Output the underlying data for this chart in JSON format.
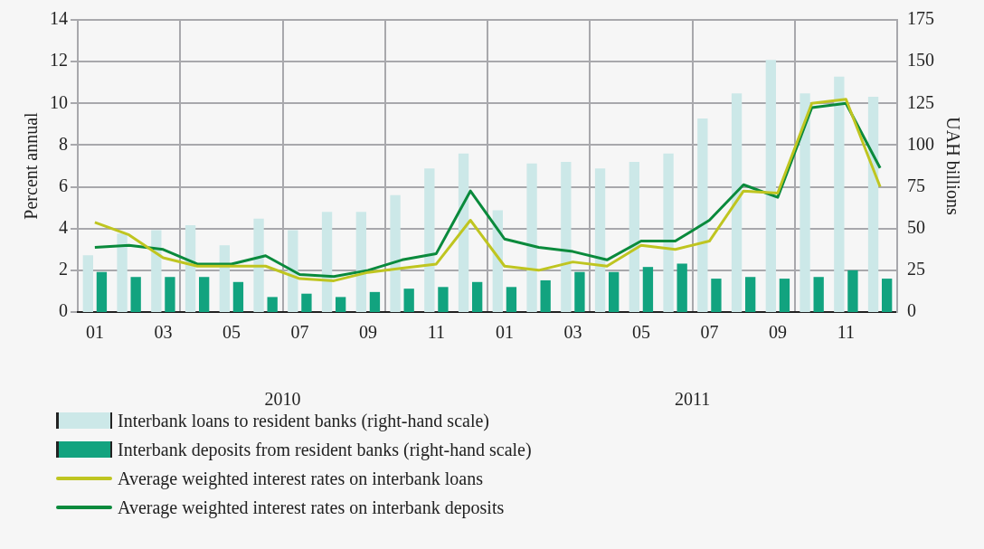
{
  "chart_data": {
    "type": "bar",
    "ylabel": "Percent annual",
    "y2label": "UAH billions",
    "categories": [
      "01",
      null,
      "03",
      null,
      "05",
      null,
      "07",
      null,
      "09",
      null,
      "11",
      null,
      "01",
      null,
      "03",
      null,
      "05",
      null,
      "07",
      null,
      "09",
      null,
      "11",
      null
    ],
    "annotations": [
      "2010",
      "2011"
    ],
    "ylim": [
      0,
      14
    ],
    "yticks": [
      0,
      2,
      4,
      6,
      8,
      10,
      12,
      14
    ],
    "y2lim": [
      0,
      175
    ],
    "y2ticks": [
      0,
      25,
      50,
      75,
      100,
      125,
      150,
      175
    ],
    "grid": true,
    "legend": "bottom",
    "series": [
      {
        "name": "Interbank loans to resident banks (right-hand scale)",
        "axis": "y2",
        "color": "#cce8e8",
        "values": [
          34,
          47,
          49,
          52,
          40,
          56,
          49,
          60,
          60,
          70,
          86,
          95,
          61,
          89,
          90,
          86,
          90,
          95,
          116,
          131,
          151,
          131,
          141,
          129
        ]
      },
      {
        "name": "Interbank deposits from resident banks (right-hand scale)",
        "axis": "y2",
        "color": "#12a37f",
        "values": [
          24,
          21,
          21,
          21,
          18,
          9,
          11,
          9,
          12,
          14,
          15,
          18,
          15,
          19,
          24,
          24,
          27,
          29,
          20,
          21,
          20,
          21,
          25,
          20
        ]
      },
      {
        "name": "Average weighted interest rates on interbank loans",
        "type": "line",
        "axis": "y",
        "color": "#bfc520",
        "values": [
          4.3,
          3.7,
          2.6,
          2.2,
          2.2,
          2.2,
          1.6,
          1.5,
          1.9,
          2.1,
          2.3,
          4.4,
          2.2,
          2.0,
          2.4,
          2.2,
          3.2,
          3.0,
          3.4,
          5.8,
          5.7,
          10.0,
          10.2,
          6.0
        ]
      },
      {
        "name": "Average weighted interest rates on interbank deposits",
        "type": "line",
        "axis": "y",
        "color": "#0a8a3c",
        "values": [
          3.1,
          3.2,
          3.0,
          2.3,
          2.3,
          2.7,
          1.8,
          1.7,
          2.0,
          2.5,
          2.8,
          5.8,
          3.5,
          3.1,
          2.9,
          2.5,
          3.4,
          3.4,
          4.4,
          6.1,
          5.5,
          9.8,
          10.0,
          6.9
        ]
      }
    ]
  }
}
